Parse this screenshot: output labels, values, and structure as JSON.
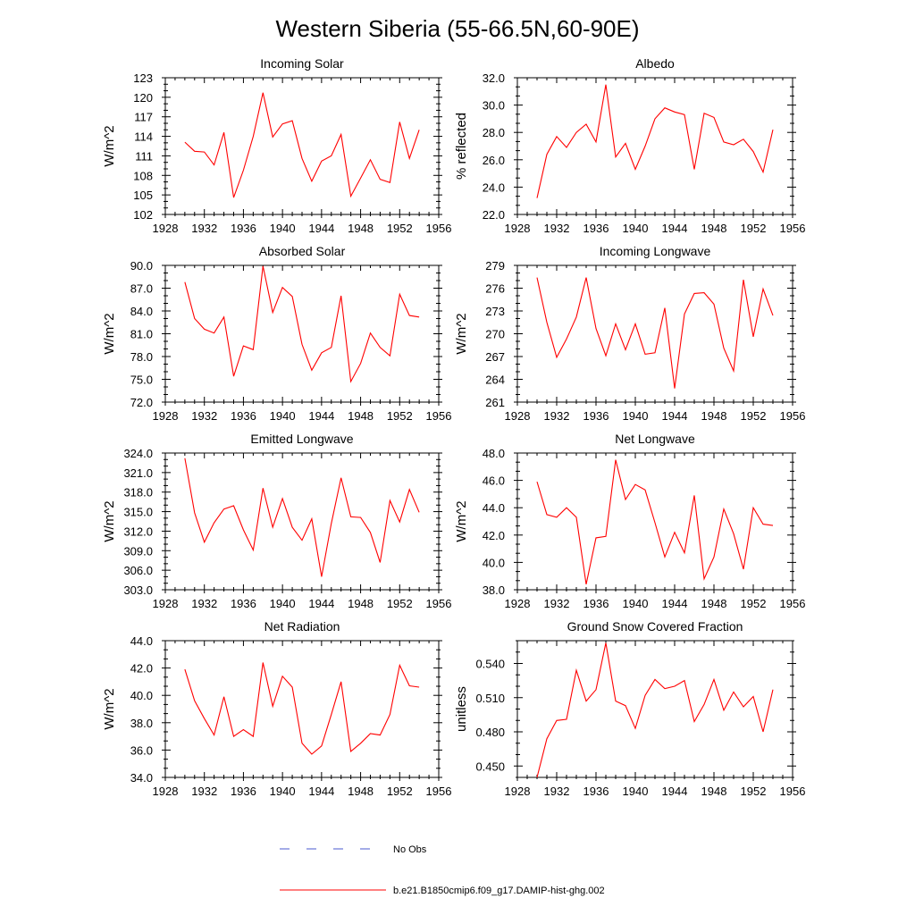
{
  "figure": {
    "title": "Western Siberia (55-66.5N,60-90E)"
  },
  "colors": {
    "model_line": "#ff0000",
    "obs_line": "#4a5acf",
    "axis": "#000000"
  },
  "legend": {
    "placement": "bottom-center",
    "entries": [
      {
        "label": "No Obs",
        "style": "dashed",
        "color": "#4a5acf"
      },
      {
        "label": "b.e21.B1850cmip6.f09_g17.DAMIP-hist-ghg.002",
        "style": "solid",
        "color": "#ff0000"
      }
    ]
  },
  "chart_data": [
    {
      "type": "line",
      "title": "Incoming Solar",
      "ylabel": "W/m^2",
      "xlabel": "",
      "xlim": [
        1928,
        1956
      ],
      "ylim": [
        102,
        123
      ],
      "xticks": [
        1928,
        1932,
        1936,
        1940,
        1944,
        1948,
        1952,
        1956
      ],
      "yticks": [
        "102",
        "105",
        "108",
        "111",
        "114",
        "117",
        "120",
        "123"
      ],
      "x": [
        1930,
        1931,
        1932,
        1933,
        1934,
        1935,
        1936,
        1937,
        1938,
        1939,
        1940,
        1941,
        1942,
        1943,
        1944,
        1945,
        1946,
        1947,
        1948,
        1949,
        1950,
        1951,
        1952,
        1953,
        1954
      ],
      "series": [
        {
          "values": [
            113.1,
            111.7,
            111.6,
            109.6,
            114.6,
            104.6,
            108.8,
            114.0,
            120.7,
            113.9,
            115.9,
            116.4,
            110.6,
            107.1,
            110.2,
            111.0,
            114.3,
            104.8,
            107.6,
            110.4,
            107.4,
            106.9,
            116.2,
            110.6,
            115.0
          ]
        }
      ]
    },
    {
      "type": "line",
      "title": "Albedo",
      "ylabel": "% reflected",
      "xlabel": "",
      "xlim": [
        1928,
        1956
      ],
      "ylim": [
        22,
        32
      ],
      "xticks": [
        1928,
        1932,
        1936,
        1940,
        1944,
        1948,
        1952,
        1956
      ],
      "yticks": [
        "22.0",
        "24.0",
        "26.0",
        "28.0",
        "30.0",
        "32.0"
      ],
      "x": [
        1930,
        1931,
        1932,
        1933,
        1934,
        1935,
        1936,
        1937,
        1938,
        1939,
        1940,
        1941,
        1942,
        1943,
        1944,
        1945,
        1946,
        1947,
        1948,
        1949,
        1950,
        1951,
        1952,
        1953,
        1954
      ],
      "series": [
        {
          "values": [
            23.2,
            26.4,
            27.7,
            26.9,
            28.0,
            28.6,
            27.3,
            31.5,
            26.2,
            27.2,
            25.3,
            27.0,
            29.0,
            29.8,
            29.5,
            29.3,
            25.3,
            29.4,
            29.1,
            27.3,
            27.1,
            27.5,
            26.6,
            25.1,
            28.2
          ]
        }
      ]
    },
    {
      "type": "line",
      "title": "Absorbed Solar",
      "ylabel": "W/m^2",
      "xlabel": "",
      "xlim": [
        1928,
        1956
      ],
      "ylim": [
        72,
        90
      ],
      "xticks": [
        1928,
        1932,
        1936,
        1940,
        1944,
        1948,
        1952,
        1956
      ],
      "yticks": [
        "72.0",
        "75.0",
        "78.0",
        "81.0",
        "84.0",
        "87.0",
        "90.0"
      ],
      "x": [
        1930,
        1931,
        1932,
        1933,
        1934,
        1935,
        1936,
        1937,
        1938,
        1939,
        1940,
        1941,
        1942,
        1943,
        1944,
        1945,
        1946,
        1947,
        1948,
        1949,
        1950,
        1951,
        1952,
        1953,
        1954
      ],
      "series": [
        {
          "values": [
            87.8,
            83.0,
            81.6,
            81.1,
            83.2,
            75.4,
            79.4,
            78.9,
            89.9,
            83.8,
            87.1,
            85.9,
            79.6,
            76.2,
            78.5,
            79.2,
            86.0,
            74.7,
            77.1,
            81.1,
            79.2,
            78.1,
            86.2,
            83.4,
            83.2
          ]
        }
      ]
    },
    {
      "type": "line",
      "title": "Incoming Longwave",
      "ylabel": "W/m^2",
      "xlabel": "",
      "xlim": [
        1928,
        1956
      ],
      "ylim": [
        261,
        279
      ],
      "xticks": [
        1928,
        1932,
        1936,
        1940,
        1944,
        1948,
        1952,
        1956
      ],
      "yticks": [
        "261",
        "264",
        "267",
        "270",
        "273",
        "276",
        "279"
      ],
      "x": [
        1930,
        1931,
        1932,
        1933,
        1934,
        1935,
        1936,
        1937,
        1938,
        1939,
        1940,
        1941,
        1942,
        1943,
        1944,
        1945,
        1946,
        1947,
        1948,
        1949,
        1950,
        1951,
        1952,
        1953,
        1954
      ],
      "series": [
        {
          "values": [
            277.4,
            271.5,
            266.9,
            269.3,
            272.2,
            277.4,
            270.7,
            267.1,
            271.3,
            267.9,
            271.3,
            267.3,
            267.5,
            273.4,
            262.8,
            272.6,
            275.3,
            275.4,
            273.9,
            268.1,
            265.1,
            277.1,
            269.6,
            275.9,
            272.4
          ]
        }
      ]
    },
    {
      "type": "line",
      "title": "Emitted Longwave",
      "ylabel": "W/m^2",
      "xlabel": "",
      "xlim": [
        1928,
        1956
      ],
      "ylim": [
        303,
        324
      ],
      "xticks": [
        1928,
        1932,
        1936,
        1940,
        1944,
        1948,
        1952,
        1956
      ],
      "yticks": [
        "303.0",
        "306.0",
        "309.0",
        "312.0",
        "315.0",
        "318.0",
        "321.0",
        "324.0"
      ],
      "x": [
        1930,
        1931,
        1932,
        1933,
        1934,
        1935,
        1936,
        1937,
        1938,
        1939,
        1940,
        1941,
        1942,
        1943,
        1944,
        1945,
        1946,
        1947,
        1948,
        1949,
        1950,
        1951,
        1952,
        1953,
        1954
      ],
      "series": [
        {
          "values": [
            323.2,
            314.8,
            310.3,
            313.3,
            315.4,
            315.9,
            312.2,
            309.1,
            318.6,
            312.6,
            317.0,
            312.6,
            310.6,
            313.9,
            305.0,
            313.2,
            320.2,
            314.2,
            314.1,
            311.8,
            307.2,
            316.7,
            313.4,
            318.4,
            314.9
          ]
        }
      ]
    },
    {
      "type": "line",
      "title": "Net Longwave",
      "ylabel": "W/m^2",
      "xlabel": "",
      "xlim": [
        1928,
        1956
      ],
      "ylim": [
        38,
        48
      ],
      "xticks": [
        1928,
        1932,
        1936,
        1940,
        1944,
        1948,
        1952,
        1956
      ],
      "yticks": [
        "38.0",
        "40.0",
        "42.0",
        "44.0",
        "46.0",
        "48.0"
      ],
      "x": [
        1930,
        1931,
        1932,
        1933,
        1934,
        1935,
        1936,
        1937,
        1938,
        1939,
        1940,
        1941,
        1942,
        1943,
        1944,
        1945,
        1946,
        1947,
        1948,
        1949,
        1950,
        1951,
        1952,
        1953,
        1954
      ],
      "series": [
        {
          "values": [
            45.9,
            43.5,
            43.3,
            44.0,
            43.3,
            38.4,
            41.8,
            41.9,
            47.5,
            44.6,
            45.7,
            45.3,
            42.9,
            40.4,
            42.2,
            40.7,
            44.9,
            38.8,
            40.4,
            43.9,
            42.1,
            39.5,
            44.0,
            42.8,
            42.7
          ]
        }
      ]
    },
    {
      "type": "line",
      "title": "Net Radiation",
      "ylabel": "W/m^2",
      "xlabel": "",
      "xlim": [
        1928,
        1956
      ],
      "ylim": [
        34,
        44
      ],
      "xticks": [
        1928,
        1932,
        1936,
        1940,
        1944,
        1948,
        1952,
        1956
      ],
      "yticks": [
        "34.0",
        "36.0",
        "38.0",
        "40.0",
        "42.0",
        "44.0"
      ],
      "x": [
        1930,
        1931,
        1932,
        1933,
        1934,
        1935,
        1936,
        1937,
        1938,
        1939,
        1940,
        1941,
        1942,
        1943,
        1944,
        1945,
        1946,
        1947,
        1948,
        1949,
        1950,
        1951,
        1952,
        1953,
        1954
      ],
      "series": [
        {
          "values": [
            41.9,
            39.6,
            38.3,
            37.1,
            39.9,
            37.0,
            37.5,
            37.0,
            42.4,
            39.2,
            41.4,
            40.6,
            36.5,
            35.7,
            36.3,
            38.6,
            41.0,
            35.9,
            36.5,
            37.2,
            37.1,
            38.6,
            42.2,
            40.7,
            40.6
          ]
        }
      ]
    },
    {
      "type": "line",
      "title": "Ground Snow Covered Fraction",
      "ylabel": "unitless",
      "xlabel": "",
      "xlim": [
        1928,
        1956
      ],
      "ylim": [
        0.44,
        0.56
      ],
      "xticks": [
        1928,
        1932,
        1936,
        1940,
        1944,
        1948,
        1952,
        1956
      ],
      "yticks": [
        "0.450",
        "0.480",
        "0.510",
        "0.540"
      ],
      "x": [
        1930,
        1931,
        1932,
        1933,
        1934,
        1935,
        1936,
        1937,
        1938,
        1939,
        1940,
        1941,
        1942,
        1943,
        1944,
        1945,
        1946,
        1947,
        1948,
        1949,
        1950,
        1951,
        1952,
        1953,
        1954
      ],
      "series": [
        {
          "values": [
            0.44,
            0.474,
            0.49,
            0.491,
            0.534,
            0.507,
            0.517,
            0.558,
            0.507,
            0.503,
            0.483,
            0.512,
            0.526,
            0.518,
            0.52,
            0.525,
            0.489,
            0.504,
            0.526,
            0.499,
            0.515,
            0.502,
            0.511,
            0.48,
            0.517
          ]
        }
      ]
    }
  ]
}
